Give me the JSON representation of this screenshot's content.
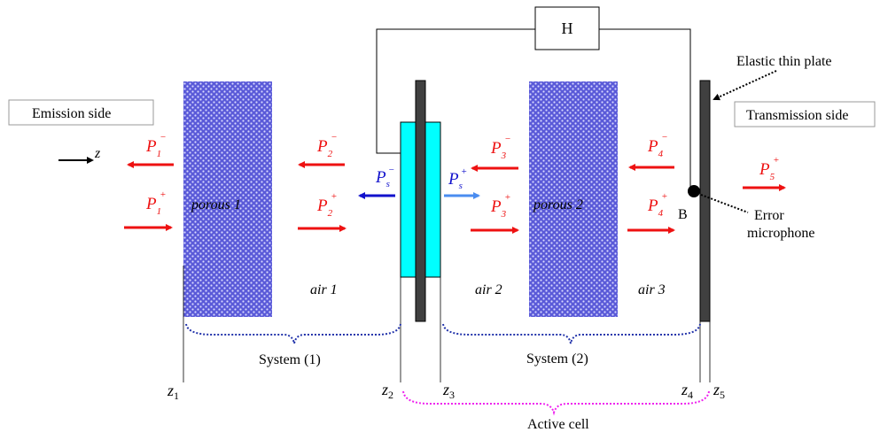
{
  "colors": {
    "porous": "#5a5ad8",
    "actuator": "#00ffff",
    "plate": "#404040",
    "arrow_red": "#ee1111",
    "arrow_blue": "#1111cc",
    "arrow_lightblue": "#4a8cf0",
    "brace_system": "#2233aa",
    "brace_cell": "#ee22ee"
  },
  "labels": {
    "emission": "Emission side",
    "transmission": "Transmission side",
    "controller": "H",
    "plate": "Elastic thin plate",
    "porous1": "porous 1",
    "porous2": "porous 2",
    "air1": "air 1",
    "air2": "air 2",
    "air3": "air 3",
    "point_b": "B",
    "error_line1": "Error",
    "error_line2": "microphone",
    "system1": "System (1)",
    "system2": "System (2)",
    "active_cell": "Active cell",
    "z_axis": "z"
  },
  "pressures": {
    "p1m": {
      "base": "P",
      "sub": "1",
      "sup": "−"
    },
    "p1p": {
      "base": "P",
      "sub": "1",
      "sup": "+"
    },
    "p2m": {
      "base": "P",
      "sub": "2",
      "sup": "−"
    },
    "p2p": {
      "base": "P",
      "sub": "2",
      "sup": "+"
    },
    "psm": {
      "base": "P",
      "sub": "s",
      "sup": "−"
    },
    "psp": {
      "base": "P",
      "sub": "s",
      "sup": "+"
    },
    "p3m": {
      "base": "P",
      "sub": "3",
      "sup": "−"
    },
    "p3p": {
      "base": "P",
      "sub": "3",
      "sup": "+"
    },
    "p4m": {
      "base": "P",
      "sub": "4",
      "sup": "−"
    },
    "p4p": {
      "base": "P",
      "sub": "4",
      "sup": "+"
    },
    "p5p": {
      "base": "P",
      "sub": "5",
      "sup": "+"
    }
  },
  "positions": {
    "z1": {
      "base": "z",
      "sub": "1"
    },
    "z2": {
      "base": "z",
      "sub": "2"
    },
    "z3": {
      "base": "z",
      "sub": "3"
    },
    "z4": {
      "base": "z",
      "sub": "4"
    },
    "z5": {
      "base": "z",
      "sub": "5"
    }
  }
}
